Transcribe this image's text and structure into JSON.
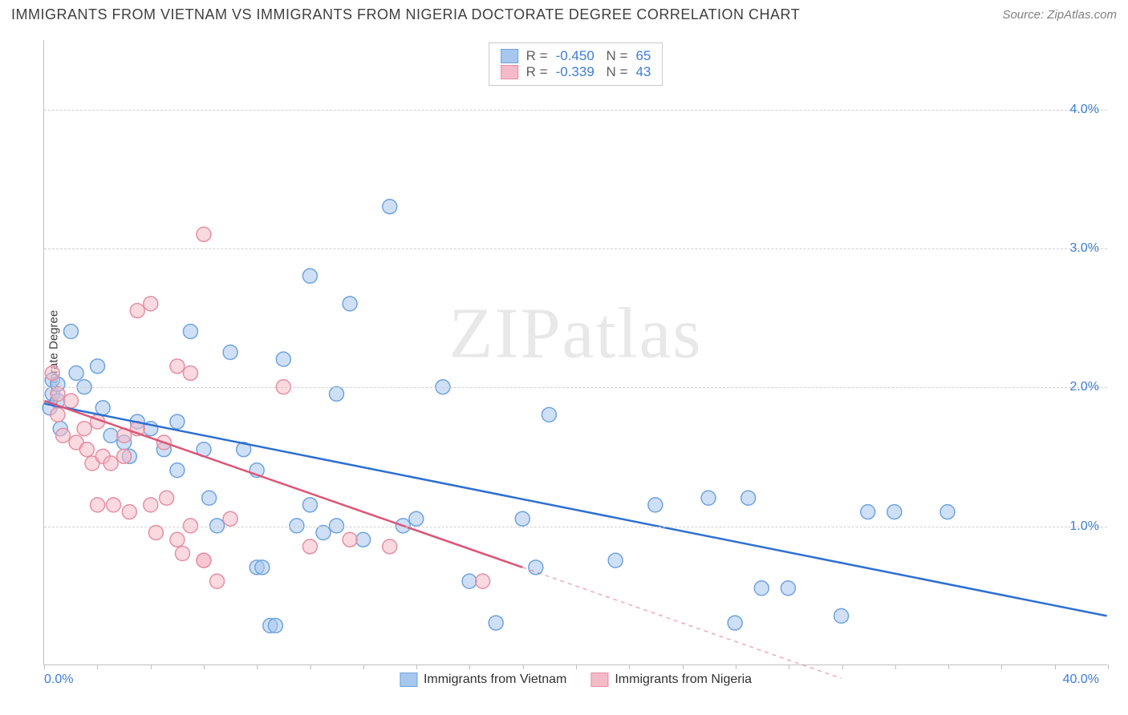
{
  "title": "IMMIGRANTS FROM VIETNAM VS IMMIGRANTS FROM NIGERIA DOCTORATE DEGREE CORRELATION CHART",
  "source": "Source: ZipAtlas.com",
  "ylabel": "Doctorate Degree",
  "watermark": "ZIPatlas",
  "chart": {
    "type": "scatter",
    "xlim": [
      0,
      40
    ],
    "ylim": [
      0,
      4.5
    ],
    "x_tick_minor_step": 2,
    "y_grid_values": [
      1.0,
      2.0,
      3.0,
      4.0
    ],
    "y_tick_labels": [
      "1.0%",
      "2.0%",
      "3.0%",
      "4.0%"
    ],
    "x_first_label": "0.0%",
    "x_last_label": "40.0%",
    "background": "#ffffff",
    "grid_color": "#d0d0d0",
    "axis_color": "#c0c0c0",
    "marker_radius": 9,
    "marker_opacity": 0.55,
    "line_width": 2.5
  },
  "series": [
    {
      "name": "Immigrants from Vietnam",
      "color_fill": "#a7c7ee",
      "color_stroke": "#6fa3de",
      "line_color": "#2d6fd0",
      "R": "-0.450",
      "N": "65",
      "regression": {
        "x1": 0,
        "y1": 1.88,
        "x2": 40,
        "y2": 0.35
      },
      "points": [
        [
          0.2,
          1.85
        ],
        [
          0.3,
          2.05
        ],
        [
          0.3,
          1.95
        ],
        [
          0.5,
          2.02
        ],
        [
          0.5,
          1.9
        ],
        [
          0.6,
          1.7
        ],
        [
          1.0,
          2.4
        ],
        [
          1.2,
          2.1
        ],
        [
          1.5,
          2.0
        ],
        [
          2.0,
          2.15
        ],
        [
          2.2,
          1.85
        ],
        [
          2.5,
          1.65
        ],
        [
          3.0,
          1.6
        ],
        [
          3.2,
          1.5
        ],
        [
          3.5,
          1.75
        ],
        [
          4.0,
          1.7
        ],
        [
          4.5,
          1.55
        ],
        [
          5.0,
          1.75
        ],
        [
          5.0,
          1.4
        ],
        [
          5.5,
          2.4
        ],
        [
          6.0,
          1.55
        ],
        [
          6.2,
          1.2
        ],
        [
          6.5,
          1.0
        ],
        [
          7.0,
          2.25
        ],
        [
          7.5,
          1.55
        ],
        [
          8.0,
          1.4
        ],
        [
          8.0,
          0.7
        ],
        [
          8.2,
          0.7
        ],
        [
          8.5,
          0.28
        ],
        [
          8.7,
          0.28
        ],
        [
          9.0,
          2.2
        ],
        [
          9.5,
          1.0
        ],
        [
          10.0,
          2.8
        ],
        [
          10.0,
          1.15
        ],
        [
          10.5,
          0.95
        ],
        [
          11.0,
          1.95
        ],
        [
          11.0,
          1.0
        ],
        [
          11.5,
          2.6
        ],
        [
          12.0,
          0.9
        ],
        [
          13.0,
          3.3
        ],
        [
          13.5,
          1.0
        ],
        [
          14.0,
          1.05
        ],
        [
          15.0,
          2.0
        ],
        [
          16.0,
          0.6
        ],
        [
          17.0,
          0.3
        ],
        [
          18.0,
          1.05
        ],
        [
          18.5,
          0.7
        ],
        [
          19.0,
          1.8
        ],
        [
          21.5,
          0.75
        ],
        [
          23.0,
          1.15
        ],
        [
          25.0,
          1.2
        ],
        [
          26.0,
          0.3
        ],
        [
          26.5,
          1.2
        ],
        [
          27.0,
          0.55
        ],
        [
          28.0,
          0.55
        ],
        [
          30.0,
          0.35
        ],
        [
          31.0,
          1.1
        ],
        [
          32.0,
          1.1
        ],
        [
          34.0,
          1.1
        ]
      ]
    },
    {
      "name": "Immigrants from Nigeria",
      "color_fill": "#f5bac7",
      "color_stroke": "#e58fa3",
      "line_color": "#dd5577",
      "R": "-0.339",
      "N": "43",
      "regression": {
        "x1": 0,
        "y1": 1.9,
        "x2": 18,
        "y2": 0.7
      },
      "regression_extrapolate": {
        "x1": 18,
        "y1": 0.7,
        "x2": 30,
        "y2": -0.1
      },
      "points": [
        [
          0.3,
          2.1
        ],
        [
          0.5,
          1.95
        ],
        [
          0.5,
          1.8
        ],
        [
          0.7,
          1.65
        ],
        [
          1.0,
          1.9
        ],
        [
          1.2,
          1.6
        ],
        [
          1.5,
          1.7
        ],
        [
          1.6,
          1.55
        ],
        [
          1.8,
          1.45
        ],
        [
          2.0,
          1.75
        ],
        [
          2.0,
          1.15
        ],
        [
          2.2,
          1.5
        ],
        [
          2.5,
          1.45
        ],
        [
          2.6,
          1.15
        ],
        [
          3.0,
          1.65
        ],
        [
          3.0,
          1.5
        ],
        [
          3.2,
          1.1
        ],
        [
          3.5,
          2.55
        ],
        [
          3.5,
          1.7
        ],
        [
          4.0,
          2.6
        ],
        [
          4.0,
          1.15
        ],
        [
          4.2,
          0.95
        ],
        [
          4.5,
          1.6
        ],
        [
          4.6,
          1.2
        ],
        [
          5.0,
          2.15
        ],
        [
          5.0,
          0.9
        ],
        [
          5.2,
          0.8
        ],
        [
          5.5,
          2.1
        ],
        [
          5.5,
          1.0
        ],
        [
          6.0,
          3.1
        ],
        [
          6.0,
          0.75
        ],
        [
          6.0,
          0.75
        ],
        [
          6.5,
          0.6
        ],
        [
          7.0,
          1.05
        ],
        [
          9.0,
          2.0
        ],
        [
          10.0,
          0.85
        ],
        [
          11.5,
          0.9
        ],
        [
          13.0,
          0.85
        ],
        [
          16.5,
          0.6
        ]
      ]
    }
  ],
  "legend": {
    "series1_label": "Immigrants from Vietnam",
    "series2_label": "Immigrants from Nigeria"
  }
}
